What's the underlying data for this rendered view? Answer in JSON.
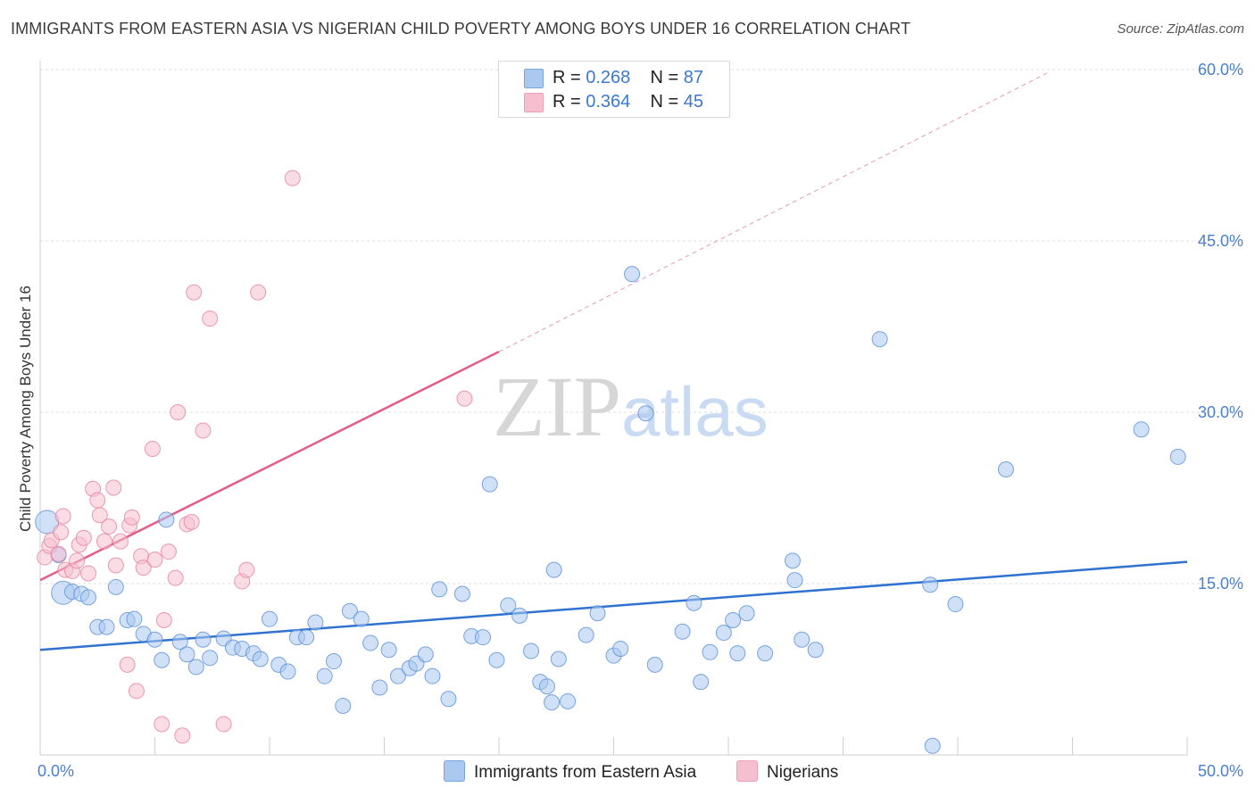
{
  "header": {
    "title": "IMMIGRANTS FROM EASTERN ASIA VS NIGERIAN CHILD POVERTY AMONG BOYS UNDER 16 CORRELATION CHART",
    "source": "Source: ZipAtlas.com"
  },
  "watermark": {
    "zip": "ZIP",
    "atlas": "atlas"
  },
  "legend": {
    "rows": [
      {
        "r_label": "R = ",
        "r_value": "0.268",
        "n_label": "N = ",
        "n_value": "87",
        "color": "#aac8f0"
      },
      {
        "r_label": "R = ",
        "r_value": "0.364",
        "n_label": "N = ",
        "n_value": "45",
        "color": "#f6bfd0"
      }
    ]
  },
  "bottom_legend": {
    "series1": "Immigrants from Eastern Asia",
    "series2": "Nigerians"
  },
  "chart_data": {
    "type": "scatter",
    "title": "IMMIGRANTS FROM EASTERN ASIA VS NIGERIAN CHILD POVERTY AMONG BOYS UNDER 16 CORRELATION CHART",
    "xlabel": "",
    "ylabel": "Child Poverty Among Boys Under 16",
    "xlim": [
      0,
      50
    ],
    "ylim": [
      0,
      60
    ],
    "x_tick_labels": [
      "0.0%",
      "50.0%"
    ],
    "y_ticks": [
      15,
      30,
      45,
      60
    ],
    "y_tick_labels": [
      "15.0%",
      "30.0%",
      "45.0%",
      "60.0%"
    ],
    "grid": true,
    "legend_position": "top-center",
    "series": [
      {
        "name": "Immigrants from Eastern Asia",
        "color": "#aac8f0",
        "stroke": "#5a8fd8",
        "R": 0.268,
        "N": 87,
        "trend": {
          "x": [
            0,
            50
          ],
          "y": [
            9.2,
            16.9
          ],
          "color": "#2f72d0"
        },
        "points": [
          [
            0.3,
            20.4
          ],
          [
            0.8,
            17.5
          ],
          [
            1.0,
            14.2
          ],
          [
            1.4,
            14.3
          ],
          [
            1.8,
            14.1
          ],
          [
            2.1,
            13.8
          ],
          [
            2.5,
            11.2
          ],
          [
            2.9,
            11.2
          ],
          [
            3.3,
            14.7
          ],
          [
            3.8,
            11.8
          ],
          [
            4.1,
            11.9
          ],
          [
            4.5,
            10.6
          ],
          [
            5.0,
            10.1
          ],
          [
            5.3,
            8.3
          ],
          [
            5.5,
            20.6
          ],
          [
            6.1,
            9.9
          ],
          [
            6.4,
            8.8
          ],
          [
            6.8,
            7.7
          ],
          [
            7.1,
            10.1
          ],
          [
            7.4,
            8.5
          ],
          [
            8.0,
            10.2
          ],
          [
            8.4,
            9.4
          ],
          [
            8.8,
            9.3
          ],
          [
            9.3,
            8.9
          ],
          [
            9.6,
            8.4
          ],
          [
            10.0,
            11.9
          ],
          [
            10.4,
            7.9
          ],
          [
            10.8,
            7.3
          ],
          [
            11.2,
            10.3
          ],
          [
            11.6,
            10.3
          ],
          [
            12.0,
            11.6
          ],
          [
            12.4,
            6.9
          ],
          [
            12.8,
            8.2
          ],
          [
            13.2,
            4.3
          ],
          [
            13.5,
            12.6
          ],
          [
            14.0,
            11.9
          ],
          [
            14.4,
            9.8
          ],
          [
            14.8,
            5.9
          ],
          [
            15.2,
            9.2
          ],
          [
            15.6,
            6.9
          ],
          [
            16.1,
            7.6
          ],
          [
            16.4,
            8.0
          ],
          [
            16.8,
            8.8
          ],
          [
            17.1,
            6.9
          ],
          [
            17.4,
            14.5
          ],
          [
            17.8,
            4.9
          ],
          [
            18.4,
            14.1
          ],
          [
            18.8,
            10.4
          ],
          [
            19.3,
            10.3
          ],
          [
            19.6,
            23.7
          ],
          [
            19.9,
            8.3
          ],
          [
            20.4,
            13.1
          ],
          [
            20.9,
            12.2
          ],
          [
            21.4,
            9.1
          ],
          [
            21.8,
            6.4
          ],
          [
            22.1,
            6.0
          ],
          [
            22.3,
            4.6
          ],
          [
            22.4,
            16.2
          ],
          [
            22.6,
            8.4
          ],
          [
            23.0,
            4.7
          ],
          [
            23.8,
            10.5
          ],
          [
            24.3,
            12.4
          ],
          [
            25.0,
            8.7
          ],
          [
            25.3,
            9.3
          ],
          [
            25.8,
            42.1
          ],
          [
            26.4,
            29.9
          ],
          [
            26.8,
            7.9
          ],
          [
            28.0,
            10.8
          ],
          [
            28.5,
            13.3
          ],
          [
            28.8,
            6.4
          ],
          [
            29.2,
            9.0
          ],
          [
            29.8,
            10.7
          ],
          [
            30.2,
            11.8
          ],
          [
            30.4,
            8.9
          ],
          [
            30.8,
            12.4
          ],
          [
            31.6,
            8.9
          ],
          [
            32.8,
            17.0
          ],
          [
            32.9,
            15.3
          ],
          [
            33.2,
            10.1
          ],
          [
            33.8,
            9.2
          ],
          [
            36.6,
            36.4
          ],
          [
            38.8,
            14.9
          ],
          [
            38.9,
            0.8
          ],
          [
            39.9,
            13.2
          ],
          [
            42.1,
            25.0
          ],
          [
            48.0,
            28.5
          ],
          [
            49.6,
            26.1
          ]
        ],
        "large_points": [
          [
            0.3,
            20.4
          ],
          [
            1.0,
            14.2
          ]
        ]
      },
      {
        "name": "Nigerians",
        "color": "#f6bfd0",
        "stroke": "#e8819f",
        "R": 0.364,
        "N": 45,
        "trend": {
          "x": [
            0,
            20
          ],
          "y": [
            15.3,
            35.3
          ],
          "color": "#e0608a"
        },
        "trend_extension": {
          "x": [
            20,
            44
          ],
          "y": [
            35.3,
            59.8
          ]
        },
        "points": [
          [
            0.2,
            17.3
          ],
          [
            0.4,
            18.3
          ],
          [
            0.5,
            18.8
          ],
          [
            0.8,
            17.6
          ],
          [
            1.0,
            20.9
          ],
          [
            1.1,
            16.2
          ],
          [
            1.4,
            16.1
          ],
          [
            1.6,
            17.0
          ],
          [
            1.7,
            18.4
          ],
          [
            1.9,
            19.0
          ],
          [
            2.1,
            15.9
          ],
          [
            2.3,
            23.3
          ],
          [
            2.5,
            22.3
          ],
          [
            2.6,
            21.0
          ],
          [
            2.8,
            18.7
          ],
          [
            3.0,
            20.0
          ],
          [
            3.2,
            23.4
          ],
          [
            3.3,
            16.6
          ],
          [
            3.5,
            18.7
          ],
          [
            3.8,
            7.9
          ],
          [
            3.9,
            20.1
          ],
          [
            4.0,
            20.8
          ],
          [
            4.2,
            5.6
          ],
          [
            4.4,
            17.4
          ],
          [
            4.5,
            16.4
          ],
          [
            4.9,
            26.8
          ],
          [
            5.0,
            17.1
          ],
          [
            5.3,
            2.7
          ],
          [
            5.4,
            11.8
          ],
          [
            5.6,
            17.8
          ],
          [
            5.9,
            15.5
          ],
          [
            6.0,
            30.0
          ],
          [
            6.2,
            1.7
          ],
          [
            6.4,
            20.2
          ],
          [
            6.6,
            20.4
          ],
          [
            6.7,
            40.5
          ],
          [
            7.1,
            28.4
          ],
          [
            7.4,
            38.2
          ],
          [
            8.0,
            2.7
          ],
          [
            8.8,
            15.2
          ],
          [
            9.0,
            16.2
          ],
          [
            9.5,
            40.5
          ],
          [
            11.0,
            50.5
          ],
          [
            18.5,
            31.2
          ],
          [
            0.9,
            19.5
          ]
        ]
      }
    ]
  }
}
